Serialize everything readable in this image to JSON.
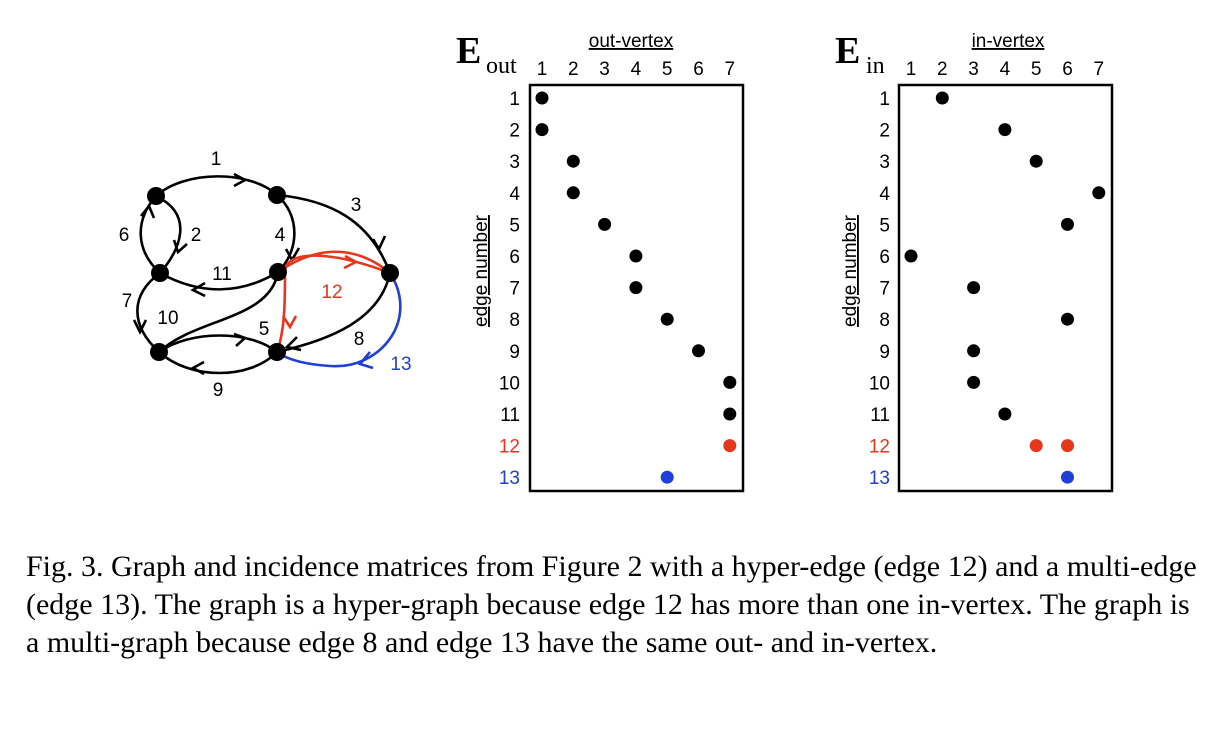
{
  "colors": {
    "black": "#000000",
    "red": "#e8361c",
    "blue": "#1f3fd6"
  },
  "graph": {
    "vertices": [
      1,
      2,
      3,
      4,
      5,
      6,
      7
    ],
    "edge_labels": {
      "e1": "1",
      "e2": "2",
      "e3": "3",
      "e4": "4",
      "e5": "5",
      "e6": "6",
      "e7": "7",
      "e8": "8",
      "e9": "9",
      "e10": "10",
      "e11": "11",
      "e12": "12",
      "e13": "13"
    }
  },
  "matrices": [
    {
      "id": "out",
      "title": "E",
      "subscript": "out",
      "header": "out-vertex",
      "row_label": "edge number",
      "columns": [
        "1",
        "2",
        "3",
        "4",
        "5",
        "6",
        "7"
      ],
      "rows": [
        "1",
        "2",
        "3",
        "4",
        "5",
        "6",
        "7",
        "8",
        "9",
        "10",
        "11",
        "12",
        "13"
      ],
      "row_colors": [
        "#000000",
        "#000000",
        "#000000",
        "#000000",
        "#000000",
        "#000000",
        "#000000",
        "#000000",
        "#000000",
        "#000000",
        "#000000",
        "#e8361c",
        "#1f3fd6"
      ],
      "entries": [
        {
          "edge": 1,
          "vertex": 1,
          "color": "#000000"
        },
        {
          "edge": 2,
          "vertex": 1,
          "color": "#000000"
        },
        {
          "edge": 3,
          "vertex": 2,
          "color": "#000000"
        },
        {
          "edge": 4,
          "vertex": 2,
          "color": "#000000"
        },
        {
          "edge": 5,
          "vertex": 3,
          "color": "#000000"
        },
        {
          "edge": 6,
          "vertex": 4,
          "color": "#000000"
        },
        {
          "edge": 7,
          "vertex": 4,
          "color": "#000000"
        },
        {
          "edge": 8,
          "vertex": 5,
          "color": "#000000"
        },
        {
          "edge": 9,
          "vertex": 6,
          "color": "#000000"
        },
        {
          "edge": 10,
          "vertex": 7,
          "color": "#000000"
        },
        {
          "edge": 11,
          "vertex": 7,
          "color": "#000000"
        },
        {
          "edge": 12,
          "vertex": 7,
          "color": "#e8361c"
        },
        {
          "edge": 13,
          "vertex": 5,
          "color": "#1f3fd6"
        }
      ]
    },
    {
      "id": "in",
      "title": "E",
      "subscript": "in",
      "header": "in-vertex",
      "row_label": "edge number",
      "columns": [
        "1",
        "2",
        "3",
        "4",
        "5",
        "6",
        "7"
      ],
      "rows": [
        "1",
        "2",
        "3",
        "4",
        "5",
        "6",
        "7",
        "8",
        "9",
        "10",
        "11",
        "12",
        "13"
      ],
      "row_colors": [
        "#000000",
        "#000000",
        "#000000",
        "#000000",
        "#000000",
        "#000000",
        "#000000",
        "#000000",
        "#000000",
        "#000000",
        "#000000",
        "#e8361c",
        "#1f3fd6"
      ],
      "entries": [
        {
          "edge": 1,
          "vertex": 2,
          "color": "#000000"
        },
        {
          "edge": 2,
          "vertex": 4,
          "color": "#000000"
        },
        {
          "edge": 3,
          "vertex": 5,
          "color": "#000000"
        },
        {
          "edge": 4,
          "vertex": 7,
          "color": "#000000"
        },
        {
          "edge": 5,
          "vertex": 6,
          "color": "#000000"
        },
        {
          "edge": 6,
          "vertex": 1,
          "color": "#000000"
        },
        {
          "edge": 7,
          "vertex": 3,
          "color": "#000000"
        },
        {
          "edge": 8,
          "vertex": 6,
          "color": "#000000"
        },
        {
          "edge": 9,
          "vertex": 3,
          "color": "#000000"
        },
        {
          "edge": 10,
          "vertex": 3,
          "color": "#000000"
        },
        {
          "edge": 11,
          "vertex": 4,
          "color": "#000000"
        },
        {
          "edge": 12,
          "vertex": 5,
          "color": "#e8361c"
        },
        {
          "edge": 12,
          "vertex": 6,
          "color": "#e8361c"
        },
        {
          "edge": 13,
          "vertex": 6,
          "color": "#1f3fd6"
        }
      ]
    }
  ],
  "caption": "Fig. 3.  Graph and incidence matrices from Figure 2 with a hyper-edge (edge 12) and a multi-edge (edge 13). The graph is a hyper-graph because edge 12 has more than one in-vertex. The graph is a multi-graph because edge 8 and edge 13 have the same out- and in-vertex."
}
